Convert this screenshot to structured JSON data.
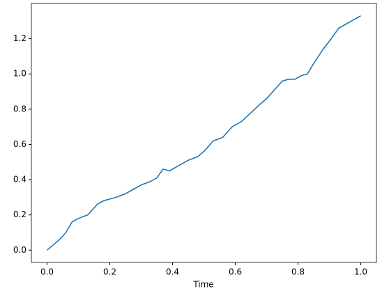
{
  "chart_data": {
    "type": "line",
    "xlabel": "Time",
    "x": [
      0,
      0.02,
      0.04,
      0.06,
      0.08,
      0.1,
      0.13,
      0.16,
      0.18,
      0.22,
      0.25,
      0.27,
      0.3,
      0.33,
      0.35,
      0.37,
      0.39,
      0.42,
      0.45,
      0.48,
      0.5,
      0.53,
      0.56,
      0.59,
      0.62,
      0.65,
      0.68,
      0.7,
      0.73,
      0.75,
      0.77,
      0.79,
      0.81,
      0.83,
      0.85,
      0.88,
      0.91,
      0.93,
      0.95,
      0.97,
      0.99,
      1.0
    ],
    "series": [
      {
        "color": "#1f77b4",
        "values": [
          0,
          0.03,
          0.06,
          0.1,
          0.16,
          0.18,
          0.2,
          0.26,
          0.28,
          0.3,
          0.32,
          0.34,
          0.37,
          0.39,
          0.41,
          0.46,
          0.45,
          0.48,
          0.51,
          0.53,
          0.56,
          0.62,
          0.64,
          0.7,
          0.73,
          0.78,
          0.83,
          0.86,
          0.92,
          0.96,
          0.97,
          0.97,
          0.99,
          1.0,
          1.06,
          1.14,
          1.21,
          1.26,
          1.28,
          1.3,
          1.32,
          1.33
        ]
      }
    ],
    "xlim": [
      -0.05,
      1.05
    ],
    "ylim": [
      -0.07,
      1.4
    ],
    "xticks": [
      {
        "value": 0,
        "label": "0.0"
      },
      0.2,
      0.4,
      0.6,
      0.8,
      {
        "value": 1,
        "label": "1.0"
      }
    ],
    "yticks": [
      {
        "value": 0,
        "label": "0.0"
      },
      0.2,
      0.4,
      0.6,
      0.8,
      {
        "value": 1,
        "label": "1.0"
      },
      1.2
    ]
  }
}
